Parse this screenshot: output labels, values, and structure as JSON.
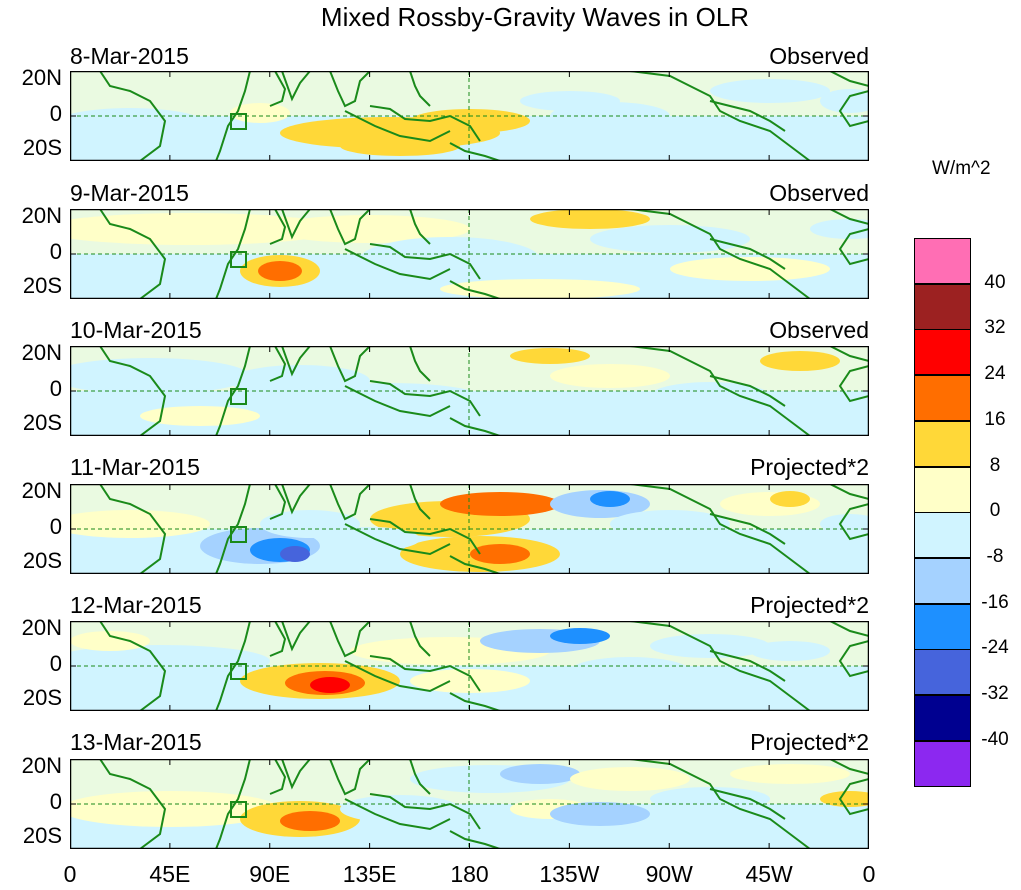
{
  "title": "Mixed Rossby-Gravity Waves in OLR",
  "panels": [
    {
      "date": "8-Mar-2015",
      "kind": "Observed"
    },
    {
      "date": "9-Mar-2015",
      "kind": "Observed"
    },
    {
      "date": "10-Mar-2015",
      "kind": "Observed"
    },
    {
      "date": "11-Mar-2015",
      "kind": "Projected*2"
    },
    {
      "date": "12-Mar-2015",
      "kind": "Projected*2"
    },
    {
      "date": "13-Mar-2015",
      "kind": "Projected*2"
    }
  ],
  "lat_labels": [
    "20N",
    "0",
    "20S"
  ],
  "lon_labels": [
    "0",
    "45E",
    "90E",
    "135E",
    "180",
    "135W",
    "90W",
    "45W",
    "0"
  ],
  "colorbar": {
    "unit": "W/m^2",
    "labels": [
      "40",
      "32",
      "24",
      "16",
      "8",
      "0",
      "-8",
      "-16",
      "-24",
      "-32",
      "-40"
    ],
    "colors": [
      "#ff6eb4",
      "#9c2121",
      "#ff0000",
      "#ff6e00",
      "#ffd838",
      "#ffffc8",
      "#d0f4ff",
      "#a5d2ff",
      "#1e90ff",
      "#4664dc",
      "#000090",
      "#8c28f0"
    ]
  }
}
